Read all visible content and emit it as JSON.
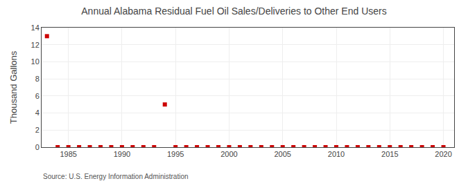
{
  "chart_data": {
    "type": "scatter",
    "title": "Annual Alabama Residual Fuel Oil Sales/Deliveries to Other End Users",
    "ylabel": "Thousand Gallons",
    "annotations": [
      "Source: U.S. Energy Information Administration"
    ],
    "x": [
      1983,
      1984,
      1985,
      1986,
      1987,
      1988,
      1989,
      1990,
      1991,
      1992,
      1993,
      1994,
      1995,
      1996,
      1997,
      1998,
      1999,
      2000,
      2001,
      2002,
      2003,
      2004,
      2005,
      2006,
      2007,
      2008,
      2009,
      2010,
      2011,
      2012,
      2013,
      2014,
      2015,
      2016,
      2017,
      2018,
      2019,
      2020
    ],
    "values": [
      13.0,
      0.0,
      0.0,
      0.0,
      0.0,
      0.0,
      0.0,
      0.0,
      0.0,
      0.0,
      0.0,
      5.0,
      0.0,
      0.0,
      0.0,
      0.0,
      0.0,
      0.0,
      0.0,
      0.0,
      0.0,
      0.0,
      0.0,
      0.0,
      0.0,
      0.0,
      0.0,
      0.0,
      0.0,
      0.0,
      0.0,
      0.0,
      0.0,
      0.0,
      0.0,
      0.0,
      0.0,
      0.0
    ],
    "color": "#cc0000",
    "marker": "square",
    "xlim": [
      1982.5,
      2021
    ],
    "xticks": [
      1985,
      1990,
      1995,
      2000,
      2005,
      2010,
      2015,
      2020
    ],
    "ylim": [
      0,
      14
    ],
    "yticks": [
      0,
      2,
      4,
      6,
      8,
      10,
      12,
      14
    ],
    "grid": true
  }
}
